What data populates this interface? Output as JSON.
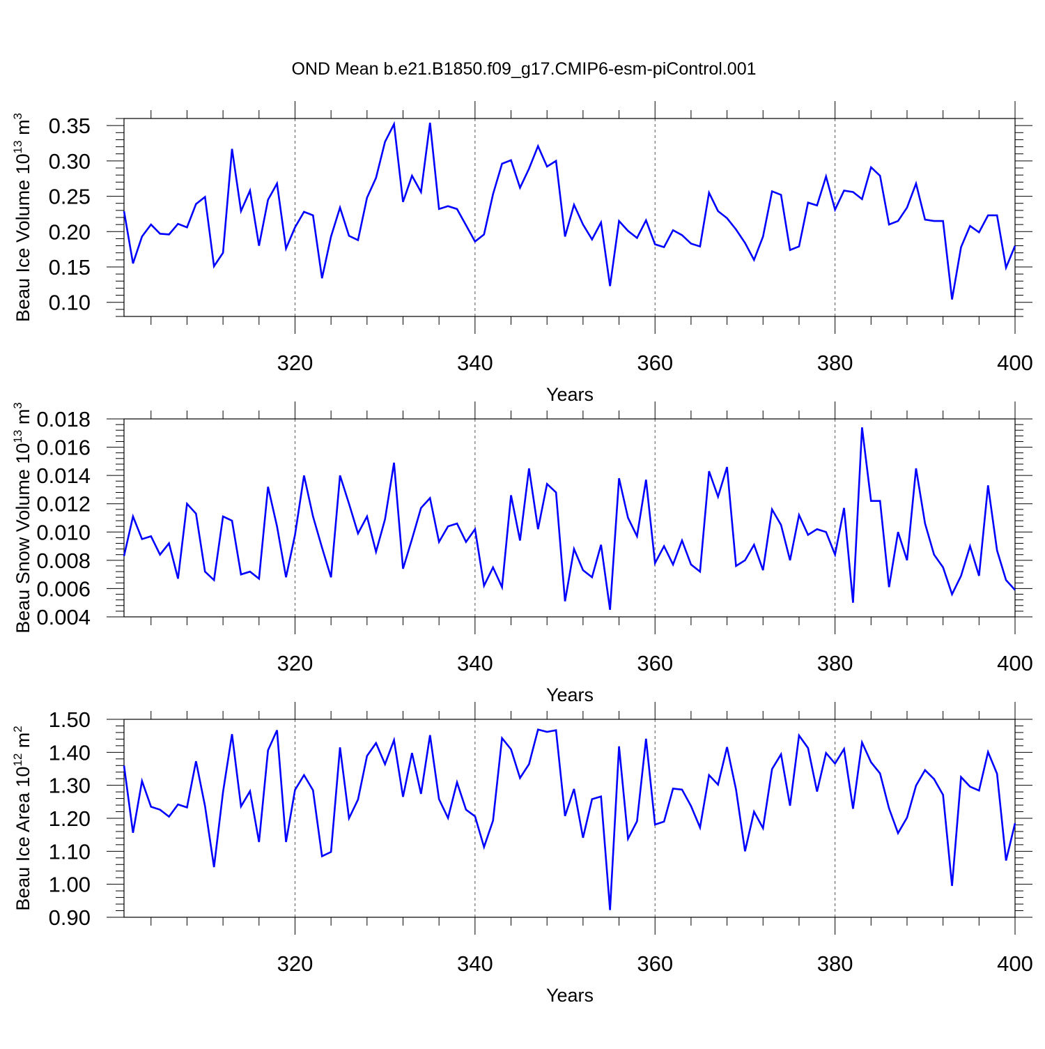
{
  "title": "OND Mean b.e21.B1850.f09_g17.CMIP6-esm-piControl.001",
  "chart_data": [
    {
      "type": "line",
      "ylabel_main": "Beau Ice Volume 10",
      "ylabel_sup": "13",
      "ylabel_unit": " m",
      "ylabel_unit_sup": "3",
      "xlabel": "Years",
      "color": "#0000ff",
      "xlim": [
        301,
        400
      ],
      "ylim": [
        0.08,
        0.36
      ],
      "yticks": [
        0.1,
        0.15,
        0.2,
        0.25,
        0.3,
        0.35
      ],
      "ytick_labels": [
        "0.10",
        "0.15",
        "0.20",
        "0.25",
        "0.30",
        "0.35"
      ],
      "xticks": [
        320,
        340,
        360,
        380,
        400
      ],
      "xtick_labels": [
        "320",
        "340",
        "360",
        "380",
        "400"
      ],
      "x_start": 301,
      "values": [
        0.229,
        0.155,
        0.193,
        0.21,
        0.197,
        0.196,
        0.211,
        0.206,
        0.239,
        0.249,
        0.151,
        0.17,
        0.317,
        0.229,
        0.258,
        0.18,
        0.245,
        0.268,
        0.176,
        0.206,
        0.228,
        0.223,
        0.134,
        0.193,
        0.234,
        0.194,
        0.188,
        0.248,
        0.276,
        0.327,
        0.352,
        0.242,
        0.279,
        0.256,
        0.354,
        0.232,
        0.236,
        0.232,
        0.209,
        0.186,
        0.196,
        0.253,
        0.296,
        0.301,
        0.262,
        0.289,
        0.321,
        0.292,
        0.3,
        0.193,
        0.238,
        0.21,
        0.189,
        0.213,
        0.123,
        0.215,
        0.201,
        0.191,
        0.216,
        0.182,
        0.178,
        0.202,
        0.195,
        0.183,
        0.179,
        0.255,
        0.229,
        0.219,
        0.203,
        0.184,
        0.16,
        0.193,
        0.257,
        0.252,
        0.174,
        0.179,
        0.241,
        0.237,
        0.278,
        0.231,
        0.258,
        0.256,
        0.246,
        0.291,
        0.279,
        0.21,
        0.215,
        0.234,
        0.268,
        0.217,
        0.215,
        0.215,
        0.104,
        0.178,
        0.208,
        0.199,
        0.223,
        0.223,
        0.149,
        0.18
      ]
    },
    {
      "type": "line",
      "ylabel_main": "Beau Snow Volume 10",
      "ylabel_sup": "13",
      "ylabel_unit": " m",
      "ylabel_unit_sup": "3",
      "xlabel": "Years",
      "color": "#0000ff",
      "xlim": [
        301,
        400
      ],
      "ylim": [
        0.004,
        0.018
      ],
      "yticks": [
        0.004,
        0.006,
        0.008,
        0.01,
        0.012,
        0.014,
        0.016,
        0.018
      ],
      "ytick_labels": [
        "0.004",
        "0.006",
        "0.008",
        "0.010",
        "0.012",
        "0.014",
        "0.016",
        "0.018"
      ],
      "xticks": [
        320,
        340,
        360,
        380,
        400
      ],
      "xtick_labels": [
        "320",
        "340",
        "360",
        "380",
        "400"
      ],
      "x_start": 301,
      "values": [
        0.0083,
        0.0111,
        0.0095,
        0.0097,
        0.0084,
        0.0092,
        0.0067,
        0.012,
        0.0113,
        0.0072,
        0.0066,
        0.0111,
        0.0108,
        0.007,
        0.0072,
        0.0067,
        0.0132,
        0.0104,
        0.0068,
        0.0098,
        0.014,
        0.0111,
        0.0089,
        0.0068,
        0.014,
        0.012,
        0.0099,
        0.0111,
        0.0086,
        0.0109,
        0.0149,
        0.0074,
        0.0095,
        0.0117,
        0.0124,
        0.0093,
        0.0104,
        0.0106,
        0.0093,
        0.0102,
        0.0062,
        0.0075,
        0.0061,
        0.0126,
        0.0094,
        0.0145,
        0.0102,
        0.0134,
        0.0128,
        0.0051,
        0.0088,
        0.0073,
        0.0068,
        0.0091,
        0.0045,
        0.0138,
        0.011,
        0.0097,
        0.0137,
        0.0078,
        0.009,
        0.0077,
        0.0094,
        0.0077,
        0.0072,
        0.0143,
        0.0125,
        0.0146,
        0.0076,
        0.008,
        0.0091,
        0.0073,
        0.0116,
        0.0105,
        0.008,
        0.0112,
        0.0098,
        0.0102,
        0.01,
        0.0084,
        0.0117,
        0.005,
        0.0174,
        0.0122,
        0.0122,
        0.0061,
        0.01,
        0.008,
        0.0145,
        0.0106,
        0.0084,
        0.0075,
        0.0056,
        0.0069,
        0.009,
        0.0069,
        0.0133,
        0.0087,
        0.0066,
        0.0059
      ]
    },
    {
      "type": "line",
      "ylabel_main": "Beau Ice Area 10",
      "ylabel_sup": "12",
      "ylabel_unit": " m",
      "ylabel_unit_sup": "2",
      "xlabel": "Years",
      "color": "#0000ff",
      "xlim": [
        301,
        400
      ],
      "ylim": [
        0.9,
        1.5
      ],
      "yticks": [
        0.9,
        1.0,
        1.1,
        1.2,
        1.3,
        1.4,
        1.5
      ],
      "ytick_labels": [
        "0.90",
        "1.00",
        "1.10",
        "1.20",
        "1.30",
        "1.40",
        "1.50"
      ],
      "xticks": [
        320,
        340,
        360,
        380,
        400
      ],
      "xtick_labels": [
        "320",
        "340",
        "360",
        "380",
        "400"
      ],
      "x_start": 301,
      "values": [
        1.36,
        1.156,
        1.313,
        1.235,
        1.226,
        1.205,
        1.242,
        1.233,
        1.373,
        1.237,
        1.052,
        1.279,
        1.455,
        1.236,
        1.282,
        1.128,
        1.406,
        1.467,
        1.128,
        1.286,
        1.331,
        1.285,
        1.085,
        1.098,
        1.415,
        1.2,
        1.257,
        1.389,
        1.428,
        1.364,
        1.437,
        1.265,
        1.398,
        1.274,
        1.452,
        1.258,
        1.201,
        1.309,
        1.226,
        1.206,
        1.113,
        1.193,
        1.443,
        1.409,
        1.322,
        1.364,
        1.469,
        1.462,
        1.467,
        1.207,
        1.289,
        1.141,
        1.258,
        1.266,
        0.922,
        1.418,
        1.138,
        1.191,
        1.441,
        1.181,
        1.19,
        1.29,
        1.287,
        1.237,
        1.172,
        1.331,
        1.302,
        1.416,
        1.287,
        1.1,
        1.22,
        1.17,
        1.349,
        1.394,
        1.238,
        1.451,
        1.413,
        1.281,
        1.398,
        1.366,
        1.41,
        1.229,
        1.43,
        1.37,
        1.336,
        1.23,
        1.155,
        1.202,
        1.299,
        1.346,
        1.319,
        1.271,
        0.995,
        1.325,
        1.296,
        1.284,
        1.401,
        1.335,
        1.072,
        1.185
      ]
    }
  ]
}
